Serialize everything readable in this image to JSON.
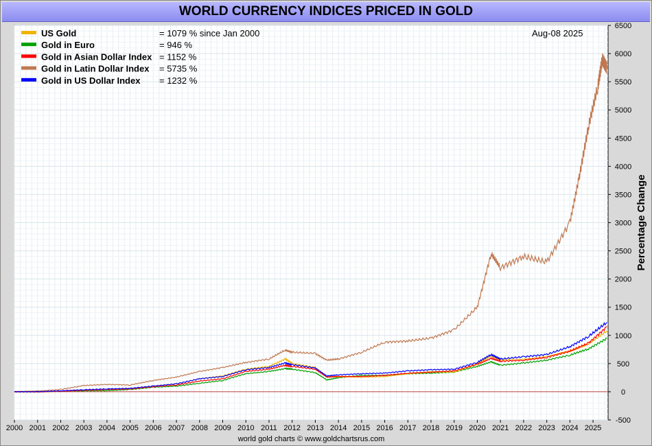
{
  "title": "WORLD CURRENCY INDICES PRICED IN GOLD",
  "date_label": "Aug-08  2025",
  "footer": "world gold charts © www.goldchartsrus.com",
  "chart_data": {
    "type": "line",
    "xlabel": "",
    "ylabel": "Percentage Change",
    "xlim": [
      2000,
      2025.65
    ],
    "ylim": [
      -500,
      6500
    ],
    "x_ticks": [
      "2000",
      "2001",
      "2002",
      "2003",
      "2004",
      "2005",
      "2006",
      "2007",
      "2008",
      "2009",
      "2010",
      "2011",
      "2012",
      "2013",
      "2014",
      "2015",
      "2016",
      "2017",
      "2018",
      "2019",
      "2020",
      "2021",
      "2022",
      "2023",
      "2024",
      "2025"
    ],
    "y_ticks": [
      "6500",
      "6000",
      "5500",
      "5000",
      "4500",
      "4000",
      "3500",
      "3000",
      "2500",
      "2000",
      "1500",
      "1000",
      "500",
      "0",
      "-500"
    ],
    "grid": true,
    "legend_position": "top-left",
    "series": [
      {
        "name": "US Gold",
        "summary": "= 1079 % since Jan 2000",
        "color": "#f0b400",
        "x": [
          2000,
          2001,
          2002,
          2003,
          2004,
          2005,
          2006,
          2007,
          2008,
          2009,
          2010,
          2011,
          2011.7,
          2012,
          2013,
          2013.5,
          2014,
          2015,
          2016,
          2017,
          2018,
          2019,
          2020,
          2020.6,
          2021,
          2022,
          2023,
          2024,
          2024.8,
          2025.6
        ],
        "y": [
          0,
          -5,
          10,
          30,
          45,
          55,
          100,
          140,
          230,
          280,
          400,
          450,
          580,
          500,
          430,
          270,
          270,
          260,
          270,
          320,
          350,
          350,
          490,
          640,
          560,
          570,
          620,
          720,
          850,
          1079
        ]
      },
      {
        "name": "Gold in Euro",
        "summary": "= 946 %",
        "color": "#00a000",
        "x": [
          2000,
          2001,
          2002,
          2003,
          2004,
          2005,
          2006,
          2007,
          2008,
          2009,
          2010,
          2011,
          2011.7,
          2012,
          2013,
          2013.5,
          2014,
          2015,
          2016,
          2017,
          2018,
          2019,
          2020,
          2020.6,
          2021,
          2022,
          2023,
          2024,
          2024.8,
          2025.6
        ],
        "y": [
          0,
          5,
          10,
          15,
          20,
          40,
          80,
          100,
          150,
          200,
          320,
          360,
          410,
          400,
          340,
          210,
          250,
          290,
          290,
          320,
          330,
          350,
          450,
          530,
          470,
          510,
          560,
          650,
          760,
          946
        ]
      },
      {
        "name": "Gold in Asian Dollar Index",
        "summary": "= 1152 %",
        "color": "#ff0000",
        "x": [
          2000,
          2001,
          2002,
          2003,
          2004,
          2005,
          2006,
          2007,
          2008,
          2009,
          2010,
          2011,
          2011.7,
          2012,
          2013,
          2013.5,
          2014,
          2015,
          2016,
          2017,
          2018,
          2019,
          2020,
          2020.6,
          2021,
          2022,
          2023,
          2024,
          2024.8,
          2025.6
        ],
        "y": [
          0,
          0,
          10,
          25,
          40,
          50,
          90,
          120,
          190,
          230,
          360,
          400,
          470,
          450,
          400,
          260,
          270,
          270,
          290,
          330,
          350,
          370,
          490,
          590,
          540,
          560,
          610,
          720,
          860,
          1152
        ]
      },
      {
        "name": "Gold in Latin Dollar Index",
        "summary": "= 5735 %",
        "color": "#c07850",
        "x": [
          2000,
          2001,
          2002,
          2003,
          2004,
          2005,
          2006,
          2007,
          2008,
          2009,
          2010,
          2011,
          2011.7,
          2012,
          2013,
          2013.5,
          2014,
          2015,
          2016,
          2017,
          2018,
          2019,
          2020,
          2020.6,
          2021,
          2022,
          2023,
          2024,
          2024.4,
          2024.8,
          2025.2,
          2025.4,
          2025.6
        ],
        "y": [
          0,
          10,
          40,
          110,
          130,
          120,
          200,
          260,
          360,
          430,
          520,
          580,
          740,
          700,
          680,
          560,
          580,
          700,
          880,
          900,
          950,
          1100,
          1500,
          2450,
          2200,
          2400,
          2300,
          3000,
          3800,
          4700,
          5400,
          5900,
          5735
        ]
      },
      {
        "name": "Gold in US Dollar Index",
        "summary": "= 1232 %",
        "color": "#0000ff",
        "x": [
          2000,
          2001,
          2002,
          2003,
          2004,
          2005,
          2006,
          2007,
          2008,
          2009,
          2010,
          2011,
          2011.7,
          2012,
          2013,
          2013.5,
          2014,
          2015,
          2016,
          2017,
          2018,
          2019,
          2020,
          2020.6,
          2021,
          2022,
          2023,
          2024,
          2024.8,
          2025.6
        ],
        "y": [
          0,
          0,
          15,
          35,
          50,
          60,
          100,
          140,
          230,
          270,
          390,
          430,
          510,
          480,
          420,
          280,
          300,
          320,
          330,
          370,
          390,
          400,
          520,
          660,
          580,
          620,
          660,
          800,
          980,
          1232
        ]
      }
    ],
    "baseline": {
      "y": 0,
      "color": "#c04040"
    }
  }
}
